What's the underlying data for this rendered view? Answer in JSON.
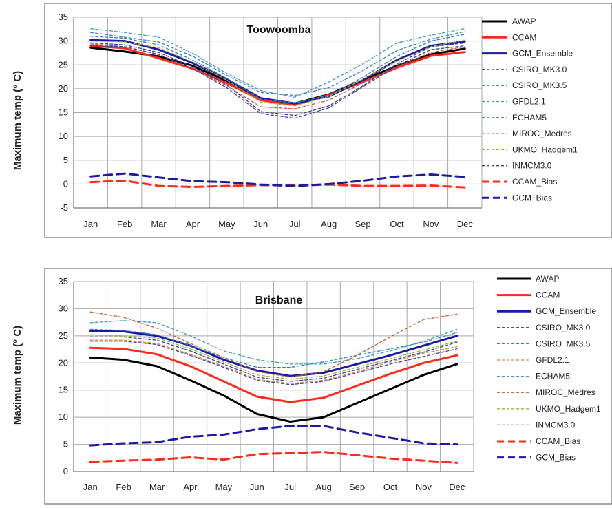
{
  "chart_data": [
    {
      "type": "line",
      "title": "Toowoomba",
      "xlabel": "",
      "ylabel": "Maximum temp (° C)",
      "ylim": [
        -5,
        35
      ],
      "yticks": [
        -5,
        0,
        5,
        10,
        15,
        20,
        25,
        30,
        35
      ],
      "grid": true,
      "legend_position": "right",
      "categories": [
        "Jan",
        "Feb",
        "Mar",
        "Apr",
        "May",
        "Jun",
        "Jul",
        "Aug",
        "Sep",
        "Oct",
        "Nov",
        "Dec"
      ],
      "series": [
        {
          "name": "AWAP",
          "color": "#000000",
          "style": "solid",
          "width": "thick",
          "values": [
            28.6,
            27.8,
            26.8,
            24.8,
            21.6,
            17.8,
            16.9,
            18.8,
            21.8,
            24.8,
            27.2,
            28.4
          ]
        },
        {
          "name": "CCAM",
          "color": "#ff2a1a",
          "style": "solid",
          "width": "thick",
          "values": [
            29.0,
            28.5,
            26.4,
            24.2,
            21.2,
            17.6,
            16.6,
            18.7,
            21.4,
            24.4,
            26.9,
            27.7
          ]
        },
        {
          "name": "GCM_Ensemble",
          "color": "#1a1aa6",
          "style": "solid",
          "width": "thick",
          "values": [
            30.2,
            30.0,
            28.2,
            25.4,
            22.0,
            18.0,
            16.9,
            18.4,
            21.8,
            26.0,
            29.0,
            29.9
          ]
        },
        {
          "name": "CSIRO_MK3.0",
          "color": "#3d3d9a",
          "style": "dashed",
          "width": "thin",
          "values": [
            29.6,
            29.2,
            27.6,
            24.6,
            20.8,
            15.2,
            14.4,
            16.4,
            20.6,
            25.2,
            28.8,
            29.6
          ]
        },
        {
          "name": "CSIRO_MK3.5",
          "color": "#2f86b4",
          "style": "dashed",
          "width": "thin",
          "values": [
            31.0,
            30.6,
            29.2,
            26.0,
            22.2,
            17.8,
            17.0,
            18.6,
            22.4,
            26.8,
            30.0,
            31.4
          ]
        },
        {
          "name": "GFDL2.1",
          "color": "#3fa0b8",
          "style": "dashed",
          "width": "thin",
          "values": [
            32.6,
            31.8,
            30.8,
            27.4,
            23.2,
            19.6,
            18.2,
            21.4,
            25.2,
            29.6,
            31.2,
            32.6
          ]
        },
        {
          "name": "ECHAM5",
          "color": "#3e7ebe",
          "style": "dashed",
          "width": "thin",
          "values": [
            31.8,
            30.8,
            29.8,
            26.8,
            22.8,
            19.2,
            18.6,
            20.2,
            23.8,
            28.0,
            30.4,
            32.0
          ]
        },
        {
          "name": "MIROC_Medres",
          "color": "#c85a3c",
          "style": "dashed",
          "width": "thin",
          "values": [
            29.4,
            28.8,
            27.2,
            24.2,
            20.6,
            16.2,
            15.8,
            17.6,
            21.2,
            24.6,
            27.6,
            28.8
          ]
        },
        {
          "name": "UKMO_Hadgem1",
          "color": "#a6b534",
          "style": "dashed",
          "width": "thin",
          "values": [
            30.0,
            29.8,
            28.6,
            25.6,
            21.8,
            17.2,
            16.4,
            18.4,
            22.0,
            25.8,
            28.8,
            30.2
          ]
        },
        {
          "name": "INMCM3.0",
          "color": "#3e4290",
          "style": "dashed",
          "width": "thin",
          "values": [
            29.0,
            28.8,
            27.2,
            24.2,
            20.2,
            14.8,
            13.8,
            16.0,
            20.4,
            24.8,
            28.2,
            29.0
          ]
        },
        {
          "name": "CCAM_Bias",
          "color": "#ff2a1a",
          "style": "dashed",
          "width": "thick",
          "values": [
            0.4,
            0.7,
            -0.4,
            -0.6,
            -0.4,
            -0.2,
            -0.3,
            -0.1,
            -0.4,
            -0.4,
            -0.3,
            -0.7
          ]
        },
        {
          "name": "GCM_Bias",
          "color": "#1a1aa6",
          "style": "dashed",
          "width": "thick",
          "values": [
            1.6,
            2.2,
            1.4,
            0.6,
            0.4,
            -0.1,
            -0.4,
            0.0,
            0.7,
            1.6,
            2.0,
            1.5
          ]
        }
      ]
    },
    {
      "type": "line",
      "title": "Brisbane",
      "xlabel": "",
      "ylabel": "Maximum temp (° C)",
      "ylim": [
        0,
        35
      ],
      "yticks": [
        0,
        5,
        10,
        15,
        20,
        25,
        30,
        35
      ],
      "grid": true,
      "legend_position": "right",
      "categories": [
        "Jan",
        "Feb",
        "Mar",
        "Apr",
        "May",
        "Jun",
        "Jul",
        "Aug",
        "Sep",
        "Oct",
        "Nov",
        "Dec"
      ],
      "series": [
        {
          "name": "AWAP",
          "color": "#000000",
          "style": "solid",
          "width": "thick",
          "values": [
            21.0,
            20.6,
            19.4,
            16.8,
            14.0,
            10.6,
            9.2,
            10.0,
            12.6,
            15.2,
            17.8,
            19.8
          ]
        },
        {
          "name": "CCAM",
          "color": "#ff2a1a",
          "style": "solid",
          "width": "thick",
          "values": [
            22.8,
            22.6,
            21.6,
            19.4,
            16.6,
            13.8,
            12.8,
            13.6,
            15.8,
            18.0,
            20.0,
            21.4
          ]
        },
        {
          "name": "GCM_Ensemble",
          "color": "#1a1aa6",
          "style": "solid",
          "width": "thick",
          "values": [
            25.8,
            25.8,
            25.0,
            23.2,
            20.6,
            18.6,
            17.6,
            18.2,
            19.8,
            21.4,
            23.2,
            25.0
          ]
        },
        {
          "name": "CSIRO_MK3.0",
          "color": "#3d3d9a",
          "style": "dashed",
          "width": "thin",
          "values": [
            24.8,
            24.8,
            24.2,
            22.2,
            19.8,
            17.4,
            16.6,
            17.2,
            18.8,
            20.4,
            22.0,
            23.8
          ]
        },
        {
          "name": "CSIRO_MK3.5",
          "color": "#2f86b4",
          "style": "dashed",
          "width": "thin",
          "values": [
            26.2,
            26.0,
            25.2,
            23.2,
            21.0,
            19.2,
            19.2,
            20.2,
            21.4,
            22.6,
            23.8,
            25.6
          ]
        },
        {
          "name": "GFDL2.1",
          "color": "#d88a50",
          "style": "dashed",
          "width": "thin",
          "values": [
            24.2,
            24.2,
            23.6,
            21.6,
            19.4,
            17.0,
            16.2,
            16.8,
            18.4,
            20.2,
            21.8,
            23.0
          ]
        },
        {
          "name": "ECHAM5",
          "color": "#3fa0b8",
          "style": "dashed",
          "width": "thin",
          "values": [
            27.4,
            27.8,
            27.4,
            25.0,
            22.2,
            20.6,
            19.8,
            19.8,
            20.8,
            22.2,
            24.0,
            26.2
          ]
        },
        {
          "name": "MIROC_Medres",
          "color": "#c85a3c",
          "style": "dashed",
          "width": "thin",
          "values": [
            29.4,
            28.4,
            26.4,
            23.6,
            21.0,
            18.4,
            17.4,
            18.4,
            21.4,
            24.8,
            28.0,
            29.0
          ]
        },
        {
          "name": "UKMO_Hadgem1",
          "color": "#8bbd3c",
          "style": "dashed",
          "width": "thin",
          "values": [
            25.2,
            25.0,
            24.6,
            22.6,
            20.2,
            17.8,
            17.0,
            17.6,
            19.2,
            20.8,
            22.4,
            24.0
          ]
        },
        {
          "name": "INMCM3.0",
          "color": "#3e4290",
          "style": "dashed",
          "width": "thin",
          "values": [
            24.0,
            24.0,
            23.4,
            21.4,
            19.2,
            16.8,
            16.0,
            16.6,
            18.2,
            19.8,
            21.2,
            22.6
          ]
        },
        {
          "name": "CCAM_Bias",
          "color": "#ff2a1a",
          "style": "dashed",
          "width": "thick",
          "values": [
            1.8,
            2.0,
            2.2,
            2.6,
            2.2,
            3.2,
            3.4,
            3.6,
            3.0,
            2.4,
            2.0,
            1.6
          ]
        },
        {
          "name": "GCM_Bias",
          "color": "#1a1aa6",
          "style": "dashed",
          "width": "thick",
          "values": [
            4.8,
            5.2,
            5.4,
            6.4,
            6.8,
            7.8,
            8.4,
            8.4,
            7.2,
            6.2,
            5.2,
            5.0
          ]
        }
      ]
    }
  ]
}
